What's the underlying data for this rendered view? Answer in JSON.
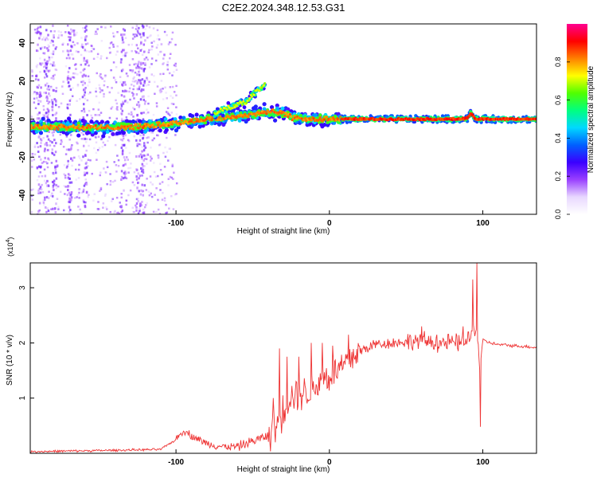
{
  "figure": {
    "title": "C2E2.2024.348.12.53.G31"
  },
  "chart_data": [
    {
      "type": "heatmap",
      "xlabel": "Height of straight line (km)",
      "ylabel": "Frequency (Hz)",
      "xlim": [
        -195,
        135
      ],
      "ylim": [
        -50,
        50
      ],
      "x_ticks": [
        -100,
        0,
        100
      ],
      "y_ticks": [
        -40,
        -20,
        0,
        20,
        40
      ],
      "grid": false,
      "ridge": {
        "x": [
          -195,
          -175,
          -150,
          -125,
          -110,
          -100,
          -90,
          -80,
          -70,
          -60,
          -50,
          -40,
          -30,
          -25,
          -20,
          -15,
          -10,
          0,
          10,
          50,
          85,
          90,
          92,
          95,
          135
        ],
        "y": [
          -4,
          -4,
          -4.5,
          -4,
          -3,
          -2,
          -1,
          0,
          0.5,
          1.5,
          2.5,
          4,
          3,
          1,
          0.5,
          0,
          0,
          0,
          0,
          0,
          0,
          0.5,
          3,
          0,
          0
        ]
      },
      "upper_branch": {
        "x": [
          -75,
          -65,
          -55,
          -50,
          -45,
          -42
        ],
        "y": [
          3,
          6,
          9,
          13,
          16,
          18
        ]
      },
      "colorbar": {
        "label": "Normalized spectral amplitude",
        "range": [
          0,
          1
        ],
        "ticks": [
          0.0,
          0.2,
          0.4,
          0.6,
          0.8
        ],
        "colors": [
          "#ffffff",
          "#e8d8ff",
          "#9a40ff",
          "#3a00ff",
          "#0060ff",
          "#00d8ff",
          "#00ff80",
          "#50ff00",
          "#ffff00",
          "#ff8000",
          "#ff0000",
          "#ff0090"
        ]
      }
    },
    {
      "type": "line",
      "xlabel": "Height of straight line (km)",
      "ylabel": "SNR (10 * v/v)",
      "y_multiplier": "(x10",
      "y_multiplier_exp": "4",
      "y_multiplier_close": ")",
      "xlim": [
        -195,
        135
      ],
      "ylim": [
        0,
        3.45
      ],
      "x_ticks": [
        -100,
        0,
        100
      ],
      "y_ticks": [
        1,
        2,
        3
      ],
      "grid": false,
      "color": "#ee3333",
      "trend": {
        "x": [
          -195,
          -150,
          -110,
          -100,
          -95,
          -90,
          -80,
          -70,
          -60,
          -50,
          -40,
          -35,
          -30,
          -25,
          -20,
          -15,
          -10,
          -5,
          0,
          5,
          10,
          15,
          20,
          30,
          40,
          50,
          60,
          70,
          80,
          88,
          92,
          95,
          97,
          98,
          100,
          105,
          110,
          120,
          135
        ],
        "y": [
          0.03,
          0.05,
          0.07,
          0.25,
          0.42,
          0.32,
          0.18,
          0.12,
          0.12,
          0.22,
          0.32,
          0.45,
          0.8,
          1.05,
          1.1,
          1.1,
          1.2,
          1.35,
          1.4,
          1.5,
          1.6,
          1.75,
          1.85,
          1.98,
          2.0,
          2.02,
          2.05,
          2.0,
          2.0,
          2.0,
          2.1,
          2.3,
          2.0,
          1.5,
          2.05,
          2.0,
          1.97,
          1.95,
          1.92
        ]
      },
      "spikes": [
        {
          "x": -37,
          "y": 1.0
        },
        {
          "x": -33,
          "y": 1.9
        },
        {
          "x": -28,
          "y": 1.75
        },
        {
          "x": -20,
          "y": 1.75
        },
        {
          "x": -12,
          "y": 2.0
        },
        {
          "x": -5,
          "y": 2.0
        },
        {
          "x": 2,
          "y": 1.95
        },
        {
          "x": 12,
          "y": 2.15
        },
        {
          "x": 60,
          "y": 2.3
        },
        {
          "x": 70,
          "y": 2.15
        },
        {
          "x": 87,
          "y": 2.3
        },
        {
          "x": 93,
          "y": 3.15
        },
        {
          "x": 96,
          "y": 3.45
        },
        {
          "x": 98,
          "y": 0.48
        }
      ]
    }
  ]
}
